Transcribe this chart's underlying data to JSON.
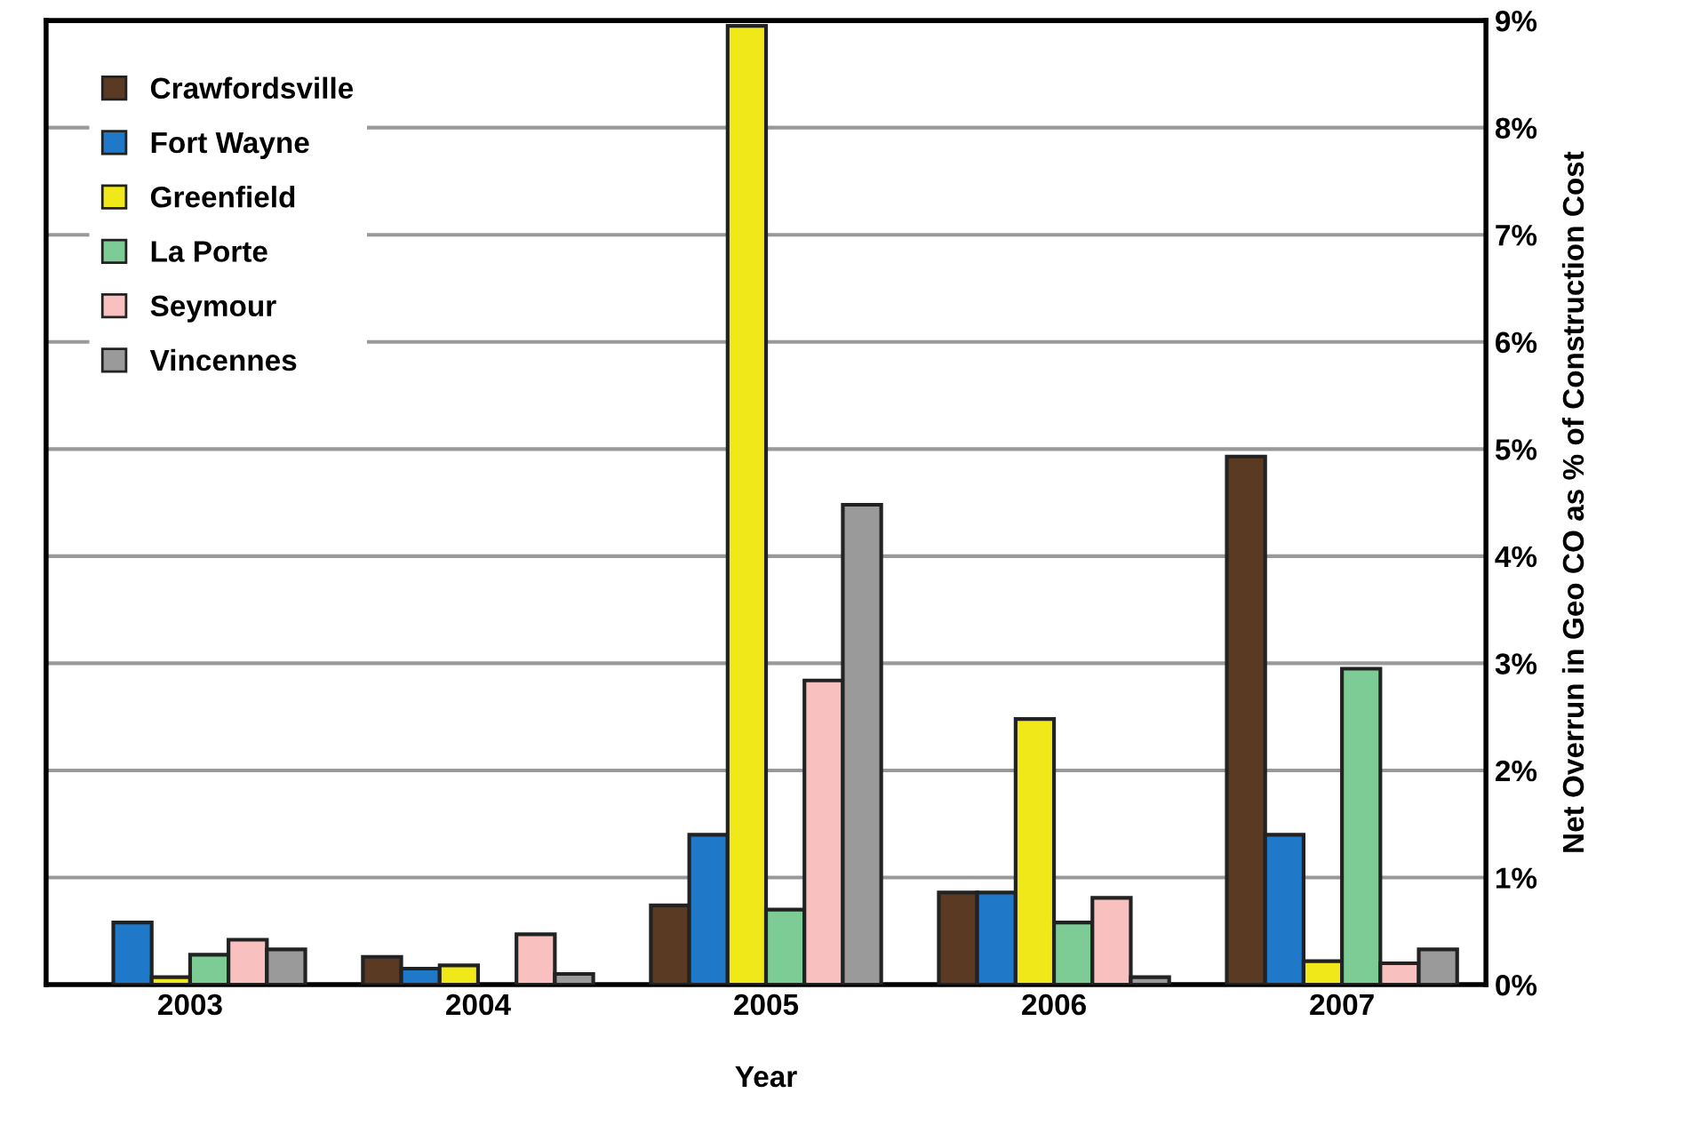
{
  "chart_data": {
    "type": "bar",
    "xlabel": "Year",
    "ylabel": "Net Overrun in Geo CO as % of Construction Cost",
    "categories": [
      "2003",
      "2004",
      "2005",
      "2006",
      "2007"
    ],
    "series": [
      {
        "name": "Crawfordsville",
        "color": "#5a3a22",
        "values": [
          null,
          0.26,
          0.74,
          0.86,
          4.93
        ]
      },
      {
        "name": "Fort Wayne",
        "color": "#1f78c8",
        "values": [
          0.58,
          0.15,
          1.4,
          0.86,
          1.4
        ]
      },
      {
        "name": "Greenfield",
        "color": "#f0e818",
        "values": [
          0.07,
          0.18,
          8.95,
          2.48,
          0.22
        ]
      },
      {
        "name": "La Porte",
        "color": "#7dcc96",
        "values": [
          0.28,
          null,
          0.7,
          0.58,
          2.95
        ]
      },
      {
        "name": "Seymour",
        "color": "#f9c0c0",
        "values": [
          0.42,
          0.47,
          2.84,
          0.81,
          0.2
        ]
      },
      {
        "name": "Vincennes",
        "color": "#9a9a9a",
        "values": [
          0.33,
          0.1,
          4.48,
          0.07,
          0.33
        ]
      }
    ],
    "ylim": [
      0,
      9
    ],
    "yticks": [
      {
        "value": 0,
        "label": "0%"
      },
      {
        "value": 1,
        "label": "1%"
      },
      {
        "value": 2,
        "label": "2%"
      },
      {
        "value": 3,
        "label": "3%"
      },
      {
        "value": 4,
        "label": "4%"
      },
      {
        "value": 5,
        "label": "5%"
      },
      {
        "value": 6,
        "label": "6%"
      },
      {
        "value": 7,
        "label": "7%"
      },
      {
        "value": 8,
        "label": "8%"
      },
      {
        "value": 9,
        "label": "9%"
      }
    ],
    "grid": "y",
    "legend": "top left"
  }
}
